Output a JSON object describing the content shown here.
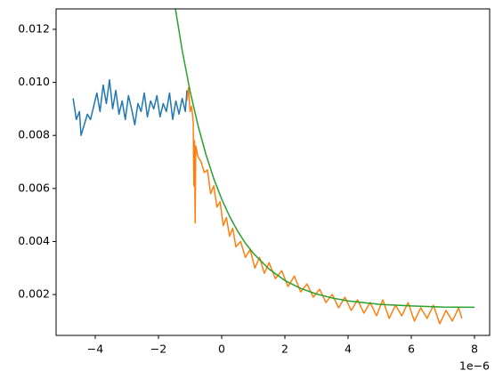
{
  "chart_data": {
    "type": "line",
    "x_offset_label": "1e−6",
    "xlim": [
      -5.24,
      8.48
    ],
    "xticks": [
      {
        "value": -4,
        "label": "−4"
      },
      {
        "value": -2,
        "label": "−2"
      },
      0,
      2,
      4,
      6,
      8
    ],
    "ylim": [
      0.00046,
      0.01277
    ],
    "yticks": [
      0.002,
      0.004,
      0.006,
      0.008,
      {
        "value": 0.01,
        "label": "0.010"
      },
      0.012
    ],
    "grid": false,
    "series": [
      {
        "color": "#1f77b4",
        "x": [
          -4.7,
          -4.6,
          -4.5,
          -4.45,
          -4.35,
          -4.25,
          -4.15,
          -4.05,
          -3.95,
          -3.85,
          -3.75,
          -3.65,
          -3.55,
          -3.45,
          -3.35,
          -3.25,
          -3.15,
          -3.05,
          -2.95,
          -2.85,
          -2.75,
          -2.65,
          -2.55,
          -2.45,
          -2.35,
          -2.25,
          -2.15,
          -2.05,
          -1.95,
          -1.85,
          -1.75,
          -1.65,
          -1.55,
          -1.45,
          -1.35,
          -1.25,
          -1.15,
          -1.1
        ],
        "values": [
          0.0094,
          0.0086,
          0.0089,
          0.008,
          0.0084,
          0.0088,
          0.0086,
          0.0091,
          0.0096,
          0.0089,
          0.0099,
          0.0092,
          0.0101,
          0.009,
          0.0097,
          0.0088,
          0.0093,
          0.0086,
          0.0095,
          0.009,
          0.0084,
          0.0092,
          0.0089,
          0.0096,
          0.0087,
          0.0093,
          0.009,
          0.0095,
          0.0087,
          0.0092,
          0.0089,
          0.0096,
          0.0086,
          0.0093,
          0.0088,
          0.0094,
          0.0089,
          0.0097
        ]
      },
      {
        "color": "#ff7f0e",
        "x": [
          -1.1,
          -1.05,
          -1.0,
          -0.95,
          -0.9,
          -0.88,
          -0.86,
          -0.84,
          -0.82,
          -0.75,
          -0.65,
          -0.55,
          -0.45,
          -0.35,
          -0.25,
          -0.15,
          -0.05,
          0.05,
          0.15,
          0.25,
          0.35,
          0.45,
          0.6,
          0.75,
          0.9,
          1.05,
          1.2,
          1.35,
          1.5,
          1.7,
          1.9,
          2.1,
          2.3,
          2.5,
          2.7,
          2.9,
          3.1,
          3.3,
          3.5,
          3.7,
          3.9,
          4.1,
          4.3,
          4.5,
          4.7,
          4.9,
          5.1,
          5.3,
          5.5,
          5.7,
          5.9,
          6.1,
          6.3,
          6.5,
          6.7,
          6.9,
          7.1,
          7.3,
          7.5,
          7.6
        ],
        "values": [
          0.0093,
          0.0098,
          0.0089,
          0.0091,
          0.0085,
          0.0061,
          0.0078,
          0.0047,
          0.0076,
          0.0072,
          0.007,
          0.0066,
          0.0067,
          0.0058,
          0.0061,
          0.0053,
          0.0055,
          0.0046,
          0.0049,
          0.0042,
          0.0045,
          0.0038,
          0.004,
          0.0034,
          0.0037,
          0.003,
          0.0034,
          0.0028,
          0.0032,
          0.0026,
          0.0029,
          0.0023,
          0.0027,
          0.0021,
          0.0024,
          0.0019,
          0.0022,
          0.0017,
          0.002,
          0.0015,
          0.0019,
          0.0014,
          0.0018,
          0.0013,
          0.0017,
          0.0012,
          0.0018,
          0.0011,
          0.0016,
          0.0012,
          0.0017,
          0.001,
          0.0015,
          0.0011,
          0.0016,
          0.0009,
          0.0014,
          0.001,
          0.0015,
          0.0011
        ]
      },
      {
        "color": "#2ca02c",
        "x": [
          -1.5,
          -1.25,
          -1,
          -0.75,
          -0.5,
          -0.25,
          0,
          0.25,
          0.5,
          0.75,
          1,
          1.5,
          2,
          2.5,
          3,
          3.5,
          4,
          5,
          6,
          7,
          8
        ],
        "values": [
          0.01304,
          0.01121,
          0.00967,
          0.00838,
          0.00729,
          0.00637,
          0.0056,
          0.00495,
          0.0044,
          0.00394,
          0.00356,
          0.00296,
          0.00253,
          0.00223,
          0.00202,
          0.00187,
          0.00176,
          0.00163,
          0.00157,
          0.00153,
          0.00152
        ]
      }
    ]
  }
}
